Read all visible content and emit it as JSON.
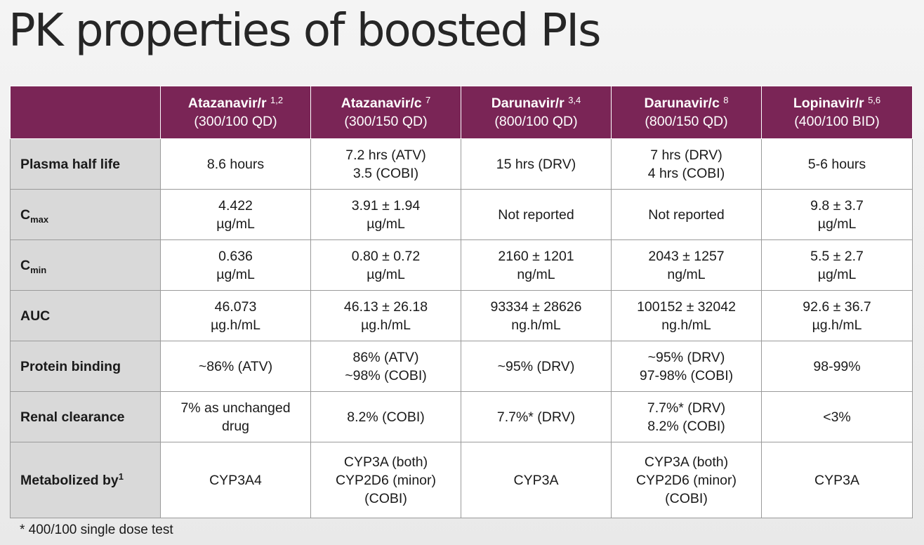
{
  "title": "PK properties of boosted PIs",
  "columns": [
    {
      "drug": "Atazanavir/r",
      "ref": "1,2",
      "dose": "(300/100 QD)"
    },
    {
      "drug": "Atazanavir/c",
      "ref": "7",
      "dose": "(300/150 QD)"
    },
    {
      "drug": "Darunavir/r",
      "ref": "3,4",
      "dose": "(800/100 QD)"
    },
    {
      "drug": "Darunavir/c",
      "ref": "8",
      "dose": "(800/150 QD)"
    },
    {
      "drug": "Lopinavir/r",
      "ref": "5,6",
      "dose": "(400/100 BID)"
    }
  ],
  "rows": [
    {
      "label": "Plasma half life",
      "label_sub": "",
      "label_sup": "",
      "cells": [
        [
          "8.6 hours"
        ],
        [
          "7.2 hrs (ATV)",
          "3.5 (COBI)"
        ],
        [
          "15 hrs (DRV)"
        ],
        [
          "7 hrs (DRV)",
          "4 hrs (COBI)"
        ],
        [
          "5-6 hours"
        ]
      ]
    },
    {
      "label": "C",
      "label_sub": "max",
      "label_sup": "",
      "cells": [
        [
          "4.422",
          "µg/mL"
        ],
        [
          "3.91 ± 1.94",
          "µg/mL"
        ],
        [
          "Not reported"
        ],
        [
          "Not reported"
        ],
        [
          "9.8 ± 3.7",
          "µg/mL"
        ]
      ]
    },
    {
      "label": "C",
      "label_sub": "min",
      "label_sup": "",
      "cells": [
        [
          "0.636",
          "µg/mL"
        ],
        [
          "0.80 ± 0.72",
          "µg/mL"
        ],
        [
          "2160 ± 1201",
          "ng/mL"
        ],
        [
          "2043 ± 1257",
          "ng/mL"
        ],
        [
          "5.5 ± 2.7",
          "µg/mL"
        ]
      ]
    },
    {
      "label": "AUC",
      "label_sub": "",
      "label_sup": "",
      "cells": [
        [
          "46.073",
          "µg.h/mL"
        ],
        [
          "46.13 ± 26.18",
          "µg.h/mL"
        ],
        [
          "93334 ± 28626",
          "ng.h/mL"
        ],
        [
          "100152 ± 32042",
          "ng.h/mL"
        ],
        [
          "92.6 ± 36.7",
          "µg.h/mL"
        ]
      ]
    },
    {
      "label": "Protein binding",
      "label_sub": "",
      "label_sup": "",
      "cells": [
        [
          "~86% (ATV)"
        ],
        [
          "86% (ATV)",
          "~98% (COBI)"
        ],
        [
          "~95% (DRV)"
        ],
        [
          "~95% (DRV)",
          "97-98% (COBI)"
        ],
        [
          "98-99%"
        ]
      ]
    },
    {
      "label": "Renal clearance",
      "label_sub": "",
      "label_sup": "",
      "cells": [
        [
          "7% as unchanged",
          "drug"
        ],
        [
          "8.2% (COBI)"
        ],
        [
          "7.7%* (DRV)"
        ],
        [
          "7.7%* (DRV)",
          "8.2% (COBI)"
        ],
        [
          "<3%"
        ]
      ]
    },
    {
      "label": "Metabolized by",
      "label_sub": "",
      "label_sup": "1",
      "cells": [
        [
          "CYP3A4"
        ],
        [
          "CYP3A (both)",
          "CYP2D6 (minor)",
          "(COBI)"
        ],
        [
          "CYP3A"
        ],
        [
          "CYP3A (both)",
          "CYP2D6 (minor)",
          "(COBI)"
        ],
        [
          "CYP3A"
        ]
      ]
    }
  ],
  "footnote": "* 400/100 single dose test"
}
